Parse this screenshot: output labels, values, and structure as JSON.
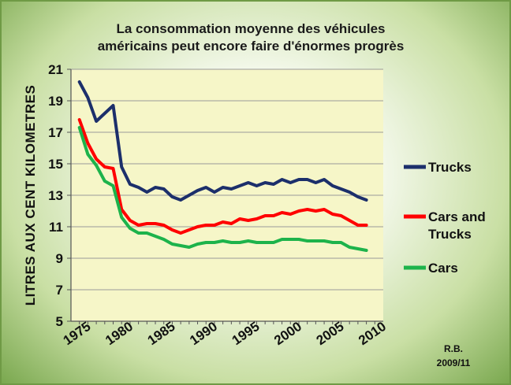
{
  "chart_data": {
    "type": "line",
    "title_lines": [
      "La consommation moyenne des véhicules",
      "américains peut encore faire d'énormes progrès"
    ],
    "ylabel": "LITRES AUX CENT KILOMETRES",
    "xlabel": "",
    "ylim": [
      5,
      21
    ],
    "yticks": [
      "5",
      "7",
      "9",
      "11",
      "13",
      "15",
      "17",
      "19",
      "21"
    ],
    "xlim": [
      1974,
      2011
    ],
    "xticks": [
      "1975",
      "1980",
      "1985",
      "1990",
      "1995",
      "2000",
      "2005",
      "2010"
    ],
    "grid": "horizontal",
    "legend_position": "right",
    "x": [
      1975,
      1976,
      1977,
      1978,
      1979,
      1980,
      1981,
      1982,
      1983,
      1984,
      1985,
      1986,
      1987,
      1988,
      1989,
      1990,
      1991,
      1992,
      1993,
      1994,
      1995,
      1996,
      1997,
      1998,
      1999,
      2000,
      2001,
      2002,
      2003,
      2004,
      2005,
      2006,
      2007,
      2008,
      2009
    ],
    "series": [
      {
        "name": "Trucks",
        "color": "#1c2f6b",
        "values": [
          20.2,
          19.2,
          17.7,
          18.2,
          18.7,
          14.8,
          13.7,
          13.5,
          13.2,
          13.5,
          13.4,
          12.9,
          12.7,
          13.0,
          13.3,
          13.5,
          13.2,
          13.5,
          13.4,
          13.6,
          13.8,
          13.6,
          13.8,
          13.7,
          14.0,
          13.8,
          14.0,
          14.0,
          13.8,
          14.0,
          13.6,
          13.4,
          13.2,
          12.9,
          12.7
        ]
      },
      {
        "name": "Cars and Trucks",
        "color": "#ff0000",
        "values": [
          17.8,
          16.3,
          15.3,
          14.8,
          14.7,
          12.1,
          11.4,
          11.1,
          11.2,
          11.2,
          11.1,
          10.8,
          10.6,
          10.8,
          11.0,
          11.1,
          11.1,
          11.3,
          11.2,
          11.5,
          11.4,
          11.5,
          11.7,
          11.7,
          11.9,
          11.8,
          12.0,
          12.1,
          12.0,
          12.1,
          11.8,
          11.7,
          11.4,
          11.1,
          11.1
        ]
      },
      {
        "name": "Cars",
        "color": "#1db34b",
        "values": [
          17.3,
          15.6,
          14.9,
          13.9,
          13.6,
          11.6,
          10.9,
          10.6,
          10.6,
          10.4,
          10.2,
          9.9,
          9.8,
          9.7,
          9.9,
          10.0,
          10.0,
          10.1,
          10.0,
          10.0,
          10.1,
          10.0,
          10.0,
          10.0,
          10.2,
          10.2,
          10.2,
          10.1,
          10.1,
          10.1,
          10.0,
          10.0,
          9.7,
          9.6,
          9.5
        ]
      }
    ]
  },
  "legend_labels": {
    "trucks": "Trucks",
    "cars_trucks_1": "Cars and",
    "cars_trucks_2": "Trucks",
    "cars": "Cars"
  },
  "signature": {
    "line1": "R.B.",
    "line2": "2009/11"
  }
}
